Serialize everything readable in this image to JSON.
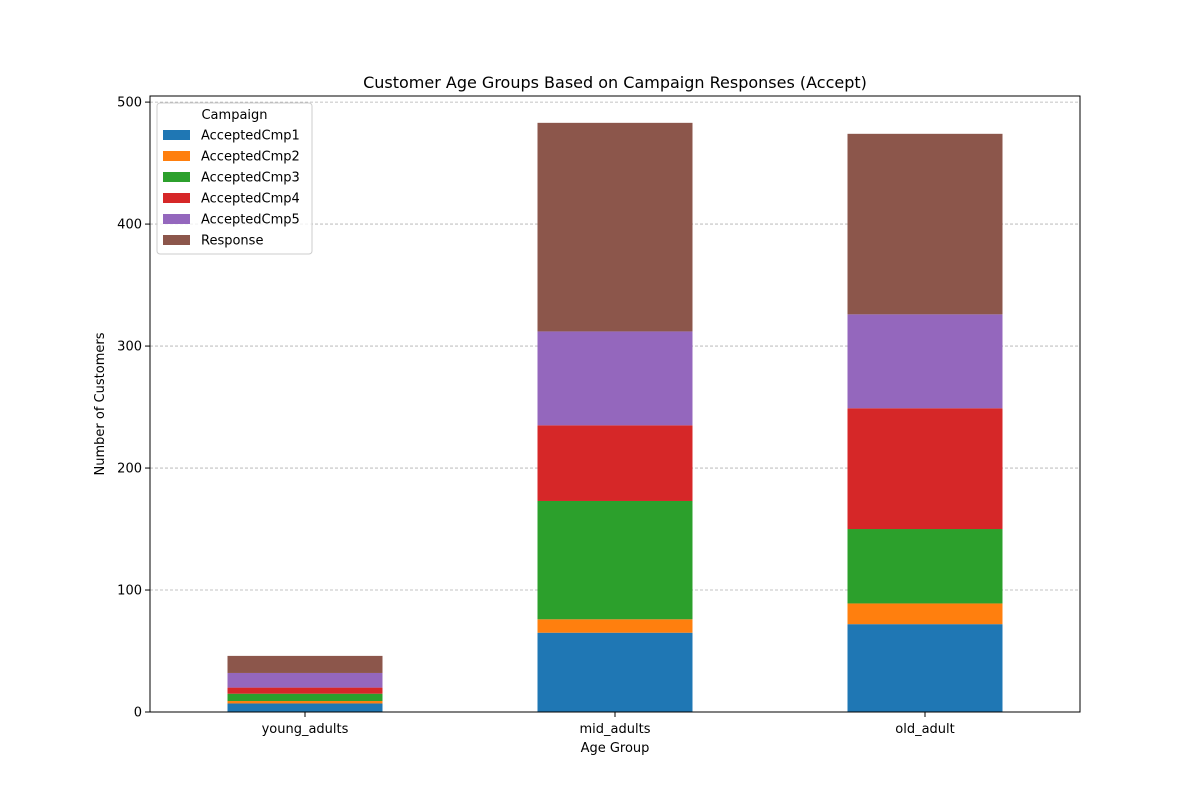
{
  "chart_data": {
    "type": "bar",
    "stacked": true,
    "title": "Customer Age Groups Based on Campaign Responses (Accept)",
    "xlabel": "Age Group",
    "ylabel": "Number of Customers",
    "ylim": [
      0,
      505
    ],
    "yticks": [
      0,
      100,
      200,
      300,
      400,
      500
    ],
    "grid": "y-dashed",
    "categories": [
      "young_adults",
      "mid_adults",
      "old_adult"
    ],
    "legend": {
      "title": "Campaign",
      "position": "top-left"
    },
    "series": [
      {
        "name": "AcceptedCmp1",
        "color": "#1f77b4",
        "values": [
          7,
          65,
          72
        ]
      },
      {
        "name": "AcceptedCmp2",
        "color": "#ff7f0e",
        "values": [
          2,
          11,
          17
        ]
      },
      {
        "name": "AcceptedCmp3",
        "color": "#2ca02c",
        "values": [
          6,
          97,
          61
        ]
      },
      {
        "name": "AcceptedCmp4",
        "color": "#d62728",
        "values": [
          5,
          62,
          99
        ]
      },
      {
        "name": "AcceptedCmp5",
        "color": "#9467bd",
        "values": [
          12,
          77,
          77
        ]
      },
      {
        "name": "Response",
        "color": "#8c564b",
        "values": [
          14,
          171,
          148
        ]
      }
    ]
  }
}
